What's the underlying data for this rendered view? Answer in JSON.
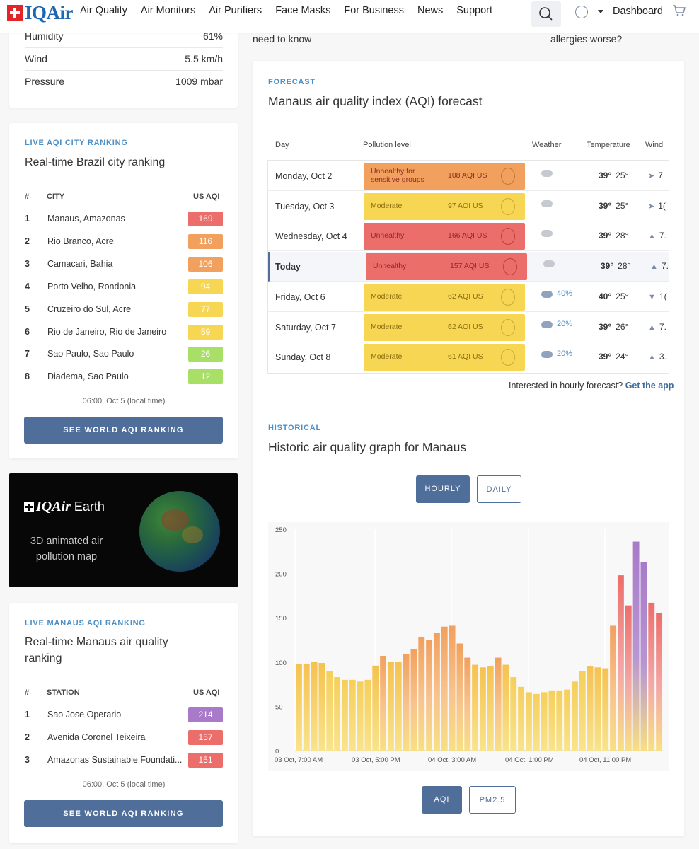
{
  "nav": {
    "logo": "IQAir",
    "links": [
      "Air Quality",
      "Air Monitors",
      "Air Purifiers",
      "Face Masks",
      "For Business",
      "News",
      "Support"
    ],
    "dashboard": "Dashboard"
  },
  "top_text": {
    "left": "need to know",
    "right": "allergies worse?"
  },
  "weather": [
    {
      "label": "Humidity",
      "value": "61%"
    },
    {
      "label": "Wind",
      "value": "5.5 km/h"
    },
    {
      "label": "Pressure",
      "value": "1009 mbar"
    }
  ],
  "city_ranking": {
    "kicker": "LIVE AQI CITY RANKING",
    "title": "Real-time Brazil city ranking",
    "col_num": "#",
    "col_city": "CITY",
    "col_aqi": "US AQI",
    "rows": [
      {
        "n": "1",
        "city": "Manaus, Amazonas",
        "aqi": "169",
        "color": "#ec6e6b"
      },
      {
        "n": "2",
        "city": "Rio Branco, Acre",
        "aqi": "116",
        "color": "#f2a05d"
      },
      {
        "n": "3",
        "city": "Camacari, Bahia",
        "aqi": "106",
        "color": "#f2a05d"
      },
      {
        "n": "4",
        "city": "Porto Velho, Rondonia",
        "aqi": "94",
        "color": "#f7d654"
      },
      {
        "n": "5",
        "city": "Cruzeiro do Sul, Acre",
        "aqi": "77",
        "color": "#f7d654"
      },
      {
        "n": "6",
        "city": "Rio de Janeiro, Rio de Janeiro",
        "aqi": "59",
        "color": "#f7d654"
      },
      {
        "n": "7",
        "city": "Sao Paulo, Sao Paulo",
        "aqi": "26",
        "color": "#a8df67"
      },
      {
        "n": "8",
        "city": "Diadema, Sao Paulo",
        "aqi": "12",
        "color": "#a8df67"
      }
    ],
    "time": "06:00, Oct 5 (local time)",
    "cta": "SEE WORLD AQI RANKING"
  },
  "earth_promo": {
    "brand": "IQAir",
    "product": "Earth",
    "tagline_1": "3D animated air",
    "tagline_2": "pollution map"
  },
  "station_ranking": {
    "kicker": "LIVE MANAUS AQI RANKING",
    "title_1": "Real-time Manaus air quality",
    "title_2": "ranking",
    "col_num": "#",
    "col_station": "STATION",
    "col_aqi": "US AQI",
    "rows": [
      {
        "n": "1",
        "name": "Sao Jose Operario",
        "aqi": "214",
        "color": "#a87ac9"
      },
      {
        "n": "2",
        "name": "Avenida Coronel Teixeira",
        "aqi": "157",
        "color": "#ec6e6b"
      },
      {
        "n": "3",
        "name": "Amazonas Sustainable Foundati...",
        "aqi": "151",
        "color": "#ec6e6b"
      }
    ],
    "time": "06:00, Oct 5 (local time)",
    "cta": "SEE WORLD AQI RANKING"
  },
  "forecast": {
    "kicker": "FORECAST",
    "title": "Manaus air quality index (AQI) forecast",
    "headers": {
      "day": "Day",
      "pollution": "Pollution level",
      "weather": "Weather",
      "temperature": "Temperature",
      "wind": "Wind"
    },
    "rows": [
      {
        "day": "Monday, Oct 2",
        "level": "Unhealthy for sensitive groups",
        "aqi": "108 AQI US",
        "color": "#f2a05d",
        "pct": "",
        "hi": "39°",
        "lo": "25°",
        "arrow": "➤",
        "wind": "7."
      },
      {
        "day": "Tuesday, Oct 3",
        "level": "Moderate",
        "aqi": "97 AQI US",
        "color": "#f7d654",
        "pct": "",
        "hi": "39°",
        "lo": "25°",
        "arrow": "➤",
        "wind": "1("
      },
      {
        "day": "Wednesday, Oct 4",
        "level": "Unhealthy",
        "aqi": "166 AQI US",
        "color": "#ec6e6b",
        "pct": "",
        "hi": "39°",
        "lo": "28°",
        "arrow": "▲",
        "wind": "7."
      },
      {
        "day": "Today",
        "level": "Unhealthy",
        "aqi": "157 AQI US",
        "color": "#ec6e6b",
        "pct": "",
        "hi": "39°",
        "lo": "28°",
        "arrow": "▲",
        "wind": "7."
      },
      {
        "day": "Friday, Oct 6",
        "level": "Moderate",
        "aqi": "62 AQI US",
        "color": "#f7d654",
        "pct": "40%",
        "hi": "40°",
        "lo": "25°",
        "arrow": "▼",
        "wind": "1("
      },
      {
        "day": "Saturday, Oct 7",
        "level": "Moderate",
        "aqi": "62 AQI US",
        "color": "#f7d654",
        "pct": "20%",
        "hi": "39°",
        "lo": "26°",
        "arrow": "▲",
        "wind": "7."
      },
      {
        "day": "Sunday, Oct 8",
        "level": "Moderate",
        "aqi": "61 AQI US",
        "color": "#f7d654",
        "pct": "20%",
        "hi": "39°",
        "lo": "24°",
        "arrow": "▲",
        "wind": "3."
      }
    ],
    "hourly_prompt": "Interested in hourly forecast?",
    "hourly_link": "Get the app"
  },
  "historical": {
    "kicker": "HISTORICAL",
    "title": "Historic air quality graph for Manaus",
    "toggle_hourly": "HOURLY",
    "toggle_daily": "DAILY",
    "metric_aqi": "AQI",
    "metric_pm": "PM2.5"
  },
  "chart_data": {
    "type": "bar",
    "ylim": [
      0,
      250
    ],
    "yticks": [
      0,
      50,
      100,
      150,
      200,
      250
    ],
    "xtick_labels": [
      "03 Oct, 7:00 AM",
      "03 Oct, 5:00 PM",
      "04 Oct, 3:00 AM",
      "04 Oct, 1:00 PM",
      "04 Oct, 11:00 PM"
    ],
    "values": [
      98,
      98,
      100,
      99,
      90,
      83,
      80,
      80,
      78,
      80,
      96,
      107,
      100,
      100,
      109,
      115,
      128,
      125,
      133,
      140,
      141,
      121,
      105,
      97,
      94,
      95,
      105,
      97,
      83,
      72,
      66,
      64,
      66,
      68,
      68,
      69,
      78,
      90,
      95,
      94,
      93,
      141,
      198,
      164,
      236,
      213,
      167,
      155
    ]
  }
}
